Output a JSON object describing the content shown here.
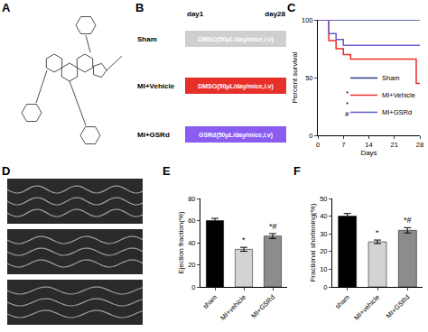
{
  "panel_labels": [
    "A",
    "B",
    "C",
    "D",
    "E",
    "F"
  ],
  "protocol": {
    "start": "day1",
    "end": "day28",
    "groups": [
      {
        "name": "Sham",
        "treatment": "DMSO(50μL/day/mice,i.v)",
        "color": "#cfcfcf"
      },
      {
        "name": "MI+Vehicle",
        "treatment": "DMSO(50μL/day/mice,i.v)",
        "color": "#e8302a"
      },
      {
        "name": "MI+GSRd",
        "treatment": "GSRd(50μL/day/mice,i.v)",
        "color": "#8a5cf0"
      }
    ]
  },
  "chart_data": [
    {
      "type": "line",
      "x_label": "Days",
      "y_label": "Percent survival",
      "xlim": [
        0,
        28
      ],
      "xticks": [
        0,
        7,
        14,
        21,
        28
      ],
      "ylim": [
        0,
        100
      ],
      "yticks": [
        0,
        50,
        100
      ],
      "line_style": "step",
      "legend": "lower right",
      "grid": false,
      "series": [
        {
          "name": "Sham",
          "color": "#2b3a8c",
          "x": [
            0,
            28
          ],
          "values": [
            100,
            100
          ]
        },
        {
          "name": "MI+Vehicle",
          "color": "#e8302a",
          "x": [
            0,
            3,
            5,
            7,
            9,
            27,
            28
          ],
          "values": [
            100,
            82,
            75,
            70,
            66,
            45,
            45
          ]
        },
        {
          "name": "MI+GSRd",
          "color": "#6a5acd",
          "x": [
            0,
            3,
            5,
            7,
            28
          ],
          "values": [
            100,
            88,
            83,
            78,
            78
          ]
        }
      ],
      "annotations": [
        "*",
        "*",
        "#"
      ]
    },
    {
      "type": "bar",
      "y_label": "Ejection fraction(%)",
      "categories": [
        "sham",
        "MI+vehicle",
        "MI+GSRd"
      ],
      "values": [
        60,
        34,
        46
      ],
      "errors": [
        2,
        1.8,
        2.2
      ],
      "colors": [
        "#000000",
        "#d3d3d3",
        "#8c8c8c"
      ],
      "ylim": [
        0,
        80
      ],
      "yticks": [
        0,
        20,
        40,
        60,
        80
      ],
      "grid": false,
      "annotations": [
        {
          "category": "MI+vehicle",
          "text": "*"
        },
        {
          "category": "MI+GSRd",
          "text": "*#"
        }
      ]
    },
    {
      "type": "bar",
      "y_label": "Fractional shortening(%)",
      "categories": [
        "sham",
        "MI+vehicle",
        "MI+GSRd"
      ],
      "values": [
        40,
        25.5,
        32
      ],
      "errors": [
        1.5,
        1,
        1.5
      ],
      "colors": [
        "#000000",
        "#d3d3d3",
        "#8c8c8c"
      ],
      "ylim": [
        0,
        50
      ],
      "yticks": [
        0,
        10,
        20,
        30,
        40,
        50
      ],
      "grid": false,
      "annotations": [
        {
          "category": "MI+vehicle",
          "text": "*"
        },
        {
          "category": "MI+GSRd",
          "text": "*#"
        }
      ]
    }
  ]
}
